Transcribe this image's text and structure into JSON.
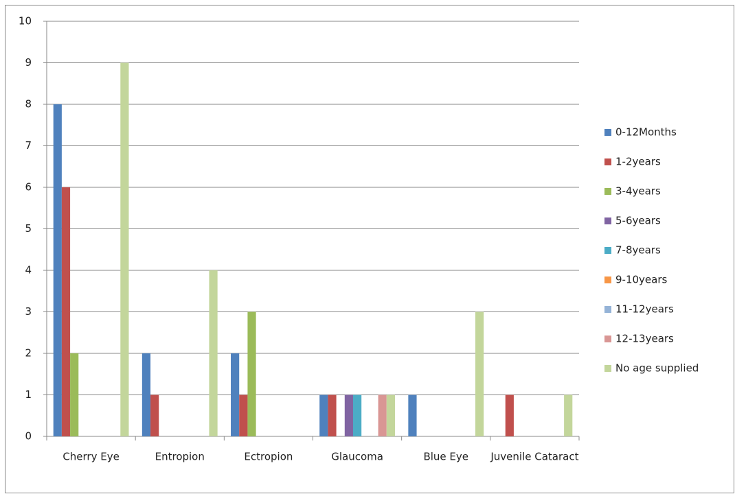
{
  "chart_data": {
    "type": "bar",
    "categories": [
      "Cherry Eye",
      "Entropion",
      "Ectropion",
      "Glaucoma",
      "Blue Eye",
      "Juvenile Cataract"
    ],
    "series": [
      {
        "name": "0-12Months",
        "color": "#4f81bd",
        "values": [
          8,
          2,
          2,
          1,
          1,
          0
        ]
      },
      {
        "name": "1-2years",
        "color": "#c0504d",
        "values": [
          6,
          1,
          1,
          1,
          0,
          1
        ]
      },
      {
        "name": "3-4years",
        "color": "#9bbb59",
        "values": [
          2,
          0,
          3,
          0,
          0,
          0
        ]
      },
      {
        "name": "5-6years",
        "color": "#8064a2",
        "values": [
          0,
          0,
          0,
          1,
          0,
          0
        ]
      },
      {
        "name": "7-8years",
        "color": "#4bacc6",
        "values": [
          0,
          0,
          0,
          1,
          0,
          0
        ]
      },
      {
        "name": "9-10years",
        "color": "#f79646",
        "values": [
          0,
          0,
          0,
          0,
          0,
          0
        ]
      },
      {
        "name": "11-12years",
        "color": "#95b3d7",
        "values": [
          0,
          0,
          0,
          0,
          0,
          0
        ]
      },
      {
        "name": "12-13years",
        "color": "#d99694",
        "values": [
          0,
          0,
          0,
          1,
          0,
          0
        ]
      },
      {
        "name": "No age supplied",
        "color": "#c3d69b",
        "values": [
          9,
          4,
          0,
          1,
          3,
          1
        ]
      }
    ],
    "ylim": [
      0,
      10
    ],
    "yticks": [
      0,
      1,
      2,
      3,
      4,
      5,
      6,
      7,
      8,
      9,
      10
    ],
    "grid": true,
    "legend": "right"
  }
}
